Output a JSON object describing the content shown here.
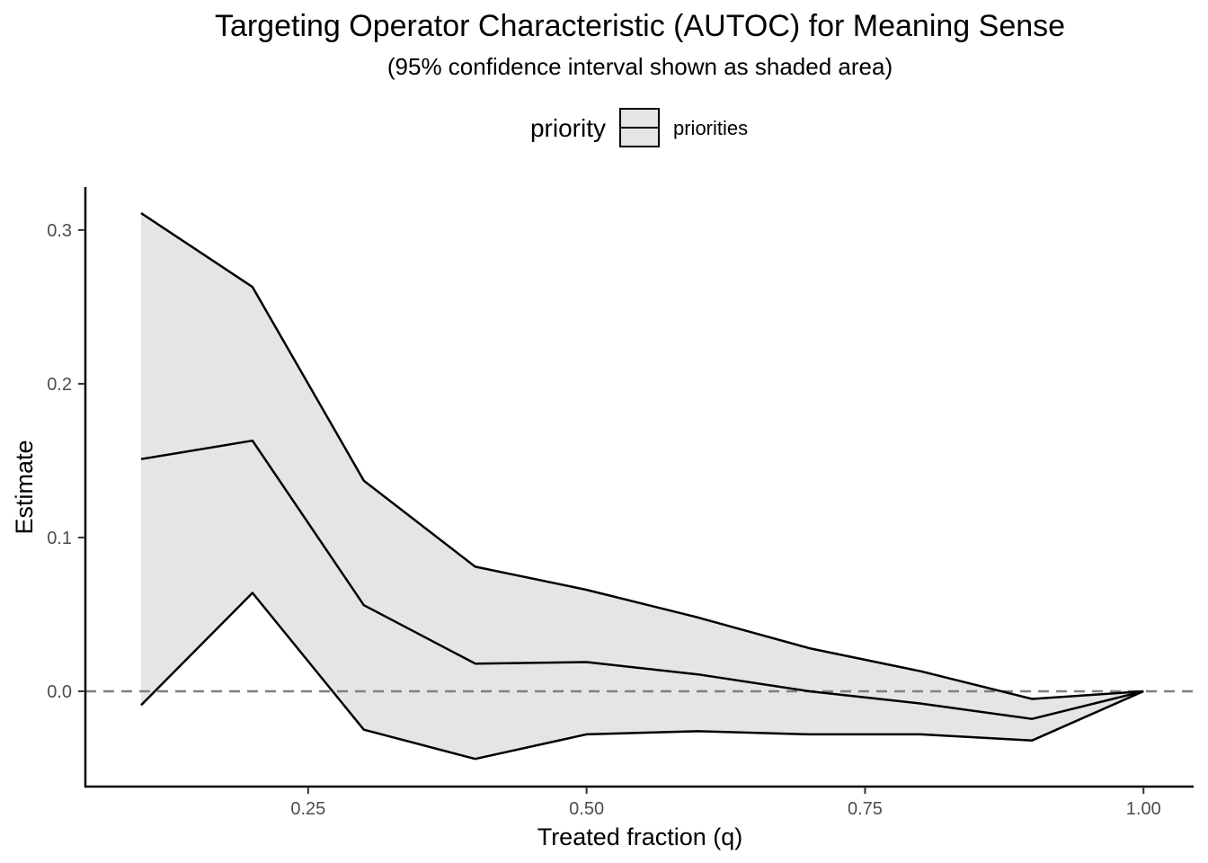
{
  "chart_data": {
    "type": "line",
    "title": "Targeting Operator Characteristic (AUTOC) for Meaning Sense",
    "subtitle": "(95% confidence interval shown as shaded area)",
    "xlabel": "Treated fraction (q)",
    "ylabel": "Estimate",
    "xlim": [
      0.05,
      1.045
    ],
    "ylim": [
      -0.062,
      0.328
    ],
    "x_ticks": [
      0.25,
      0.5,
      0.75,
      1.0
    ],
    "x_tick_labels": [
      "0.25",
      "0.50",
      "0.75",
      "1.00"
    ],
    "y_ticks": [
      0.0,
      0.1,
      0.2,
      0.3
    ],
    "y_tick_labels": [
      "0.0",
      "0.1",
      "0.2",
      "0.3"
    ],
    "grid": false,
    "reference_line": {
      "y": 0,
      "style": "dashed",
      "color": "#808080"
    },
    "legend": {
      "title": "priority",
      "position": "top",
      "entries": [
        "priorities"
      ]
    },
    "x": [
      0.1,
      0.2,
      0.3,
      0.4,
      0.5,
      0.6,
      0.7,
      0.8,
      0.9,
      1.0
    ],
    "series": [
      {
        "name": "priorities",
        "values": [
          0.151,
          0.163,
          0.056,
          0.018,
          0.019,
          0.011,
          0.0,
          -0.008,
          -0.018,
          0.0
        ],
        "lower": [
          -0.009,
          0.064,
          -0.025,
          -0.044,
          -0.028,
          -0.026,
          -0.028,
          -0.028,
          -0.032,
          0.0
        ],
        "upper": [
          0.311,
          0.263,
          0.137,
          0.081,
          0.066,
          0.048,
          0.028,
          0.013,
          -0.005,
          0.0
        ],
        "line_color": "#000000",
        "ribbon_color": "#e5e5e5"
      }
    ]
  }
}
